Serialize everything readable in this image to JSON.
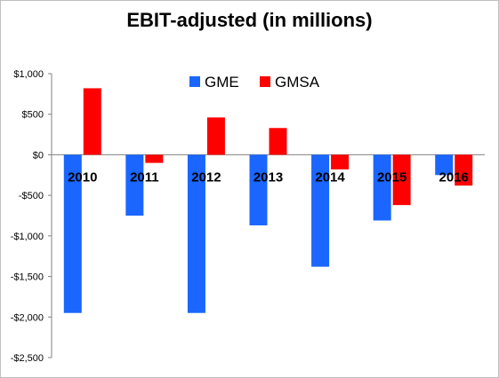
{
  "chart_data": {
    "type": "bar",
    "title": "EBIT-adjusted (in millions)",
    "categories": [
      "2010",
      "2011",
      "2012",
      "2013",
      "2014",
      "2015",
      "2016"
    ],
    "series": [
      {
        "name": "GME",
        "color": "#1a66ff",
        "values": [
          -1950,
          -750,
          -1950,
          -870,
          -1380,
          -810,
          -250
        ]
      },
      {
        "name": "GMSA",
        "color": "#ff0000",
        "values": [
          820,
          -100,
          460,
          330,
          -180,
          -620,
          -380
        ]
      }
    ],
    "ylim": [
      -2500,
      1000
    ],
    "yticks": [
      1000,
      500,
      0,
      -500,
      -1000,
      -1500,
      -2000,
      -2500
    ],
    "ytick_labels": [
      "$1,000",
      "$500",
      "$0",
      "-$500",
      "-$1,000",
      "-$1,500",
      "-$2,000",
      "-$2,500"
    ],
    "legend_position": "top-center",
    "grid": false
  }
}
